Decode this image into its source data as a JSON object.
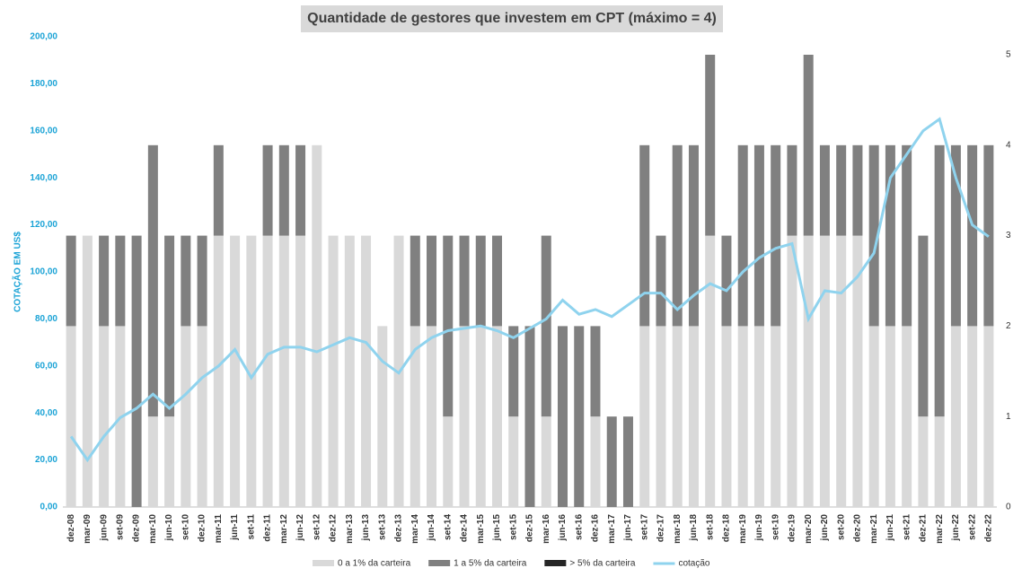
{
  "chart_data": {
    "type": "bar",
    "title": "Quantidade de gestores que investem em CPT (máximo = 4)",
    "ylabel": "COTAÇÃO EM US$",
    "categories": [
      "dez-08",
      "mar-09",
      "jun-09",
      "set-09",
      "dez-09",
      "mar-10",
      "jun-10",
      "set-10",
      "dez-10",
      "mar-11",
      "jun-11",
      "set-11",
      "dez-11",
      "mar-12",
      "jun-12",
      "set-12",
      "dez-12",
      "mar-13",
      "jun-13",
      "set-13",
      "dez-13",
      "mar-14",
      "jun-14",
      "set-14",
      "dez-14",
      "mar-15",
      "jun-15",
      "set-15",
      "dez-15",
      "mar-16",
      "jun-16",
      "set-16",
      "dez-16",
      "mar-17",
      "jun-17",
      "set-17",
      "dez-17",
      "mar-18",
      "jun-18",
      "set-18",
      "dez-18",
      "mar-19",
      "jun-19",
      "set-19",
      "dez-19",
      "mar-20",
      "jun-20",
      "set-20",
      "dez-20",
      "mar-21",
      "jun-21",
      "set-21",
      "dez-21",
      "mar-22",
      "jun-22",
      "set-22",
      "dez-22"
    ],
    "series": [
      {
        "name": "0 a 1% da carteira",
        "color": "#d9d9d9",
        "axis": "y2",
        "values": [
          2,
          3,
          2,
          2,
          0,
          1,
          1,
          2,
          2,
          3,
          3,
          3,
          3,
          3,
          3,
          4,
          3,
          3,
          3,
          2,
          3,
          2,
          2,
          1,
          2,
          2,
          2,
          1,
          0,
          1,
          0,
          0,
          1,
          0,
          0,
          2,
          2,
          2,
          2,
          3,
          2,
          2,
          2,
          2,
          3,
          3,
          3,
          3,
          3,
          2,
          2,
          2,
          1,
          1,
          2,
          2,
          2
        ]
      },
      {
        "name": "1 a 5% da carteira",
        "color": "#808080",
        "axis": "y2",
        "values": [
          1,
          0,
          1,
          1,
          3,
          3,
          2,
          1,
          1,
          1,
          0,
          0,
          1,
          1,
          1,
          0,
          0,
          0,
          0,
          0,
          0,
          1,
          1,
          2,
          1,
          1,
          1,
          1,
          2,
          2,
          2,
          2,
          1,
          1,
          1,
          2,
          1,
          2,
          2,
          2,
          1,
          2,
          2,
          2,
          1,
          2,
          1,
          1,
          1,
          2,
          2,
          2,
          2,
          3,
          2,
          2,
          2
        ]
      },
      {
        "name": "> 5% da carteira",
        "color": "#262626",
        "axis": "y2",
        "values": [
          0,
          0,
          0,
          0,
          0,
          0,
          0,
          0,
          0,
          0,
          0,
          0,
          0,
          0,
          0,
          0,
          0,
          0,
          0,
          0,
          0,
          0,
          0,
          0,
          0,
          0,
          0,
          0,
          0,
          0,
          0,
          0,
          0,
          0,
          0,
          0,
          0,
          0,
          0,
          0,
          0,
          0,
          0,
          0,
          0,
          0,
          0,
          0,
          0,
          0,
          0,
          0,
          0,
          0,
          0,
          0,
          0
        ]
      },
      {
        "name": "cotação",
        "color": "#8fd3ee",
        "type": "line",
        "values": [
          30,
          20,
          30,
          38,
          42,
          48,
          42,
          48,
          55,
          60,
          67,
          55,
          65,
          68,
          68,
          66,
          69,
          72,
          70,
          62,
          57,
          67,
          72,
          75,
          76,
          77,
          75,
          72,
          76,
          80,
          88,
          82,
          84,
          81,
          86,
          91,
          91,
          84,
          90,
          95,
          92,
          100,
          106,
          110,
          112,
          80,
          92,
          91,
          98,
          108,
          140,
          150,
          160,
          165,
          140,
          120,
          115
        ]
      }
    ],
    "ylim": [
      0,
      200
    ],
    "yticks": [
      {
        "value": 0,
        "label": "0,00"
      },
      {
        "value": 20,
        "label": "20,00"
      },
      {
        "value": 40,
        "label": "40,00"
      },
      {
        "value": 60,
        "label": "60,00"
      },
      {
        "value": 80,
        "label": "80,00"
      },
      {
        "value": 100,
        "label": "100,00"
      },
      {
        "value": 120,
        "label": "120,00"
      },
      {
        "value": 140,
        "label": "140,00"
      },
      {
        "value": 160,
        "label": "160,00"
      },
      {
        "value": 180,
        "label": "180,00"
      },
      {
        "value": 200,
        "label": "200,00"
      }
    ],
    "y2lim": [
      0,
      5
    ],
    "y2ticks": [
      0,
      1,
      2,
      3,
      4,
      5
    ],
    "legend": "bottom"
  }
}
